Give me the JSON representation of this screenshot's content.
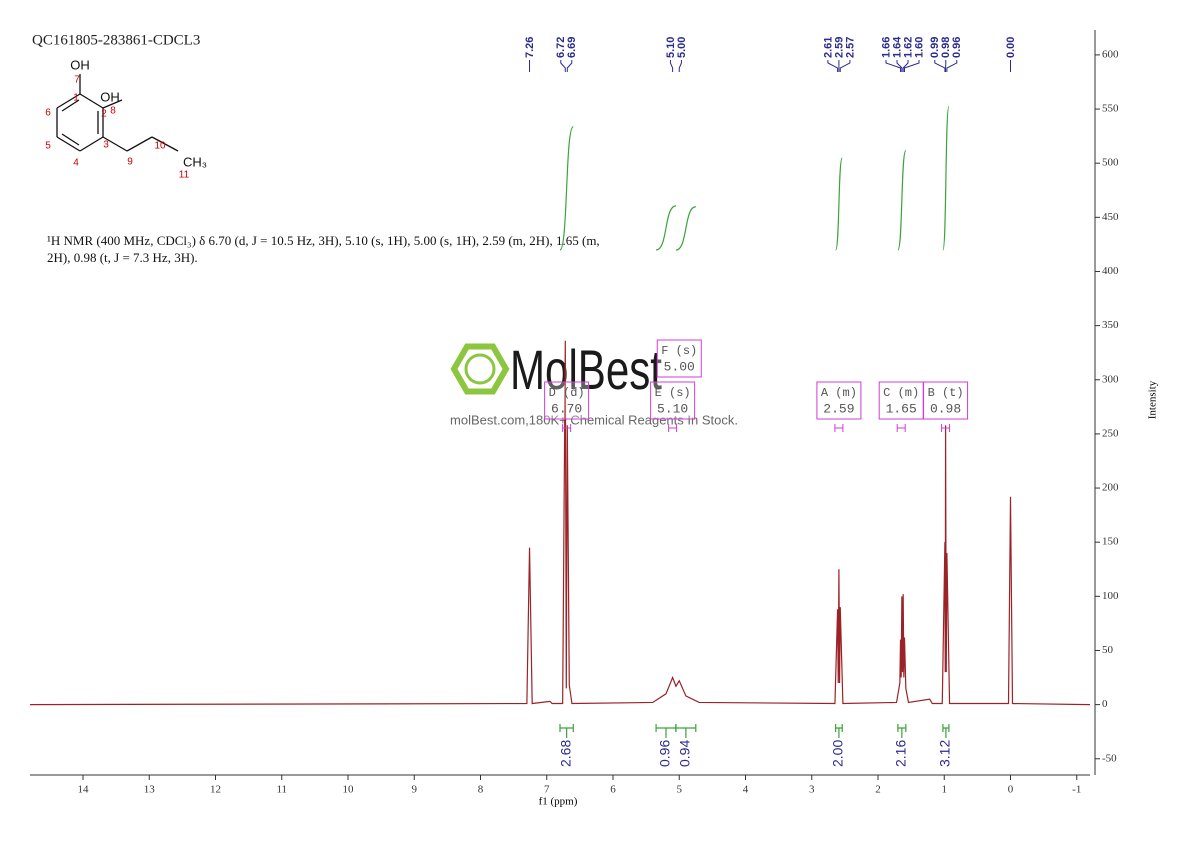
{
  "header": {
    "sample_id": "QC161805-283861-CDCL3"
  },
  "structure": {
    "atoms": [
      "OH",
      "7",
      "1",
      "OH",
      "8",
      "6",
      "2",
      "5",
      "3",
      "4",
      "9",
      "10",
      "CH₃",
      "11"
    ]
  },
  "description": "¹H NMR (400 MHz, CDCl₃) δ 6.70 (d, J = 10.5 Hz, 3H), 5.10 (s, 1H), 5.00 (s, 1H), 2.59 (m, 2H), 1.65 (m, 2H), 0.98 (t, J = 7.3 Hz, 3H).",
  "watermark": {
    "brand": "MolBest",
    "tagline": "molBest.com,180K+ Chemical Reagents In Stock."
  },
  "chart_data": {
    "type": "line",
    "x_label": "f1 (ppm)",
    "y_label": "Intensity",
    "xlim": [
      14.8,
      -1.2
    ],
    "ylim": [
      -65,
      623
    ],
    "xticks": [
      14,
      13,
      12,
      11,
      10,
      9,
      8,
      7,
      6,
      5,
      4,
      3,
      2,
      1,
      0,
      -1
    ],
    "yticks": [
      -50,
      0,
      50,
      100,
      150,
      200,
      250,
      300,
      350,
      400,
      450,
      500,
      550,
      600
    ],
    "color": "#9b2226",
    "x": [
      14.8,
      7.3,
      7.26,
      7.22,
      6.95,
      6.92,
      6.76,
      6.72,
      6.705,
      6.69,
      6.66,
      6.62,
      5.4,
      5.2,
      5.1,
      5.05,
      5.0,
      4.9,
      4.7,
      2.65,
      2.61,
      2.6,
      2.59,
      2.58,
      2.57,
      2.53,
      1.72,
      1.67,
      1.66,
      1.65,
      1.64,
      1.63,
      1.62,
      1.61,
      1.6,
      1.58,
      1.54,
      1.22,
      1.18,
      1.03,
      0.99,
      0.985,
      0.98,
      0.97,
      0.96,
      0.92,
      0.03,
      0.0,
      -0.03,
      -1.2
    ],
    "values": [
      0,
      1,
      145,
      1,
      3,
      1,
      1,
      336,
      15,
      258,
      18,
      1,
      2,
      10,
      25,
      17,
      22,
      8,
      2,
      1,
      88,
      20,
      125,
      20,
      90,
      1,
      2,
      20,
      60,
      25,
      100,
      30,
      102,
      25,
      62,
      15,
      2,
      5,
      1,
      1,
      150,
      30,
      258,
      30,
      140,
      1,
      1,
      192,
      1,
      0
    ],
    "peaks": {
      "values": [
        7.26,
        6.72,
        6.69,
        5.1,
        5.0,
        2.61,
        2.59,
        2.57,
        1.66,
        1.64,
        1.62,
        1.6,
        0.99,
        0.98,
        0.96,
        0.0
      ],
      "value_labels": [
        "7.26",
        "6.72",
        "6.69",
        "5.10",
        "5.00",
        "2.61",
        "2.59",
        "2.57",
        "1.66",
        "1.64",
        "1.62",
        "1.60",
        "0.99",
        "0.98",
        "0.96",
        "0.00"
      ]
    },
    "integrals": {
      "values": [
        2.68,
        0.96,
        0.94,
        2.0,
        2.16,
        3.12
      ],
      "value_labels": [
        "2.68",
        "0.96",
        "0.94",
        "2.00",
        "2.16",
        "3.12"
      ],
      "ranges": [
        [
          6.8,
          6.6
        ],
        [
          5.35,
          5.05
        ],
        [
          5.05,
          4.75
        ],
        [
          2.64,
          2.54
        ],
        [
          1.7,
          1.58
        ],
        [
          1.02,
          0.93
        ]
      ]
    },
    "multiplets": {
      "names": [
        "D (d)",
        "E (s)",
        "F (s)",
        "A (m)",
        "C (m)",
        "B (t)"
      ],
      "shifts": [
        6.7,
        5.1,
        5.0,
        2.59,
        1.65,
        0.98
      ],
      "shift_labels": [
        "6.70",
        "5.10",
        "5.00",
        "2.59",
        "1.65",
        "0.98"
      ]
    }
  }
}
